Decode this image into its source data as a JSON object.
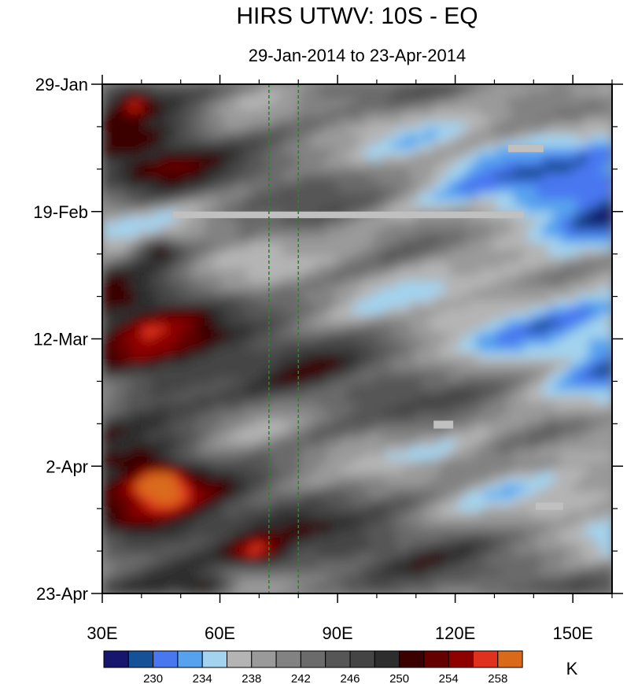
{
  "chart_data": {
    "type": "heatmap",
    "title": "HIRS UTWV: 10S - EQ",
    "subtitle": "29-Jan-2014 to 23-Apr-2014",
    "xlabel": "",
    "ylabel": "",
    "x_ticks": [
      {
        "value": 30,
        "label": "30E"
      },
      {
        "value": 60,
        "label": "60E"
      },
      {
        "value": 90,
        "label": "90E"
      },
      {
        "value": 120,
        "label": "120E"
      },
      {
        "value": 150,
        "label": "150E"
      }
    ],
    "xlim": [
      30,
      160
    ],
    "y_ticks": [
      {
        "value": 0,
        "label": "29-Jan"
      },
      {
        "value": 21,
        "label": "19-Feb"
      },
      {
        "value": 42,
        "label": "12-Mar"
      },
      {
        "value": 63,
        "label": "2-Apr"
      },
      {
        "value": 84,
        "label": "23-Apr"
      }
    ],
    "ylim_days": [
      0,
      84
    ],
    "reference_lines_lon": [
      72.5,
      80
    ],
    "colorbar": {
      "units": "K",
      "labels": [
        "230",
        "234",
        "238",
        "242",
        "246",
        "250",
        "254",
        "258"
      ],
      "colors": [
        "#16166f",
        "#155196",
        "#4877f0",
        "#57a2ee",
        "#a3d3ee",
        "#b4b4b4",
        "#9a9a9a",
        "#828282",
        "#6b6b6b",
        "#565656",
        "#444444",
        "#2d2d2d",
        "#3b0000",
        "#640000",
        "#8e0000",
        "#e0301e",
        "#da6a1a"
      ]
    },
    "missing_color": "#c0c0c0"
  }
}
